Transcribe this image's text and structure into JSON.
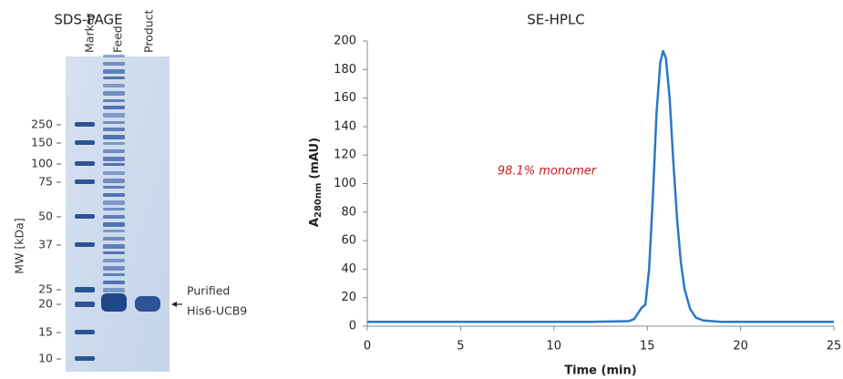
{
  "gel": {
    "title": "SDS-PAGE",
    "lanes": [
      "Marker",
      "Feed",
      "Product"
    ],
    "y_label": "MW [kDa]",
    "mw_ticks": [
      250,
      150,
      100,
      75,
      50,
      37,
      25,
      20,
      15,
      10
    ],
    "annotation": [
      "Purified",
      "His6-UCB9"
    ]
  },
  "chart_data": {
    "type": "line",
    "title": "SE-HPLC",
    "x_label": "Time (min)",
    "y_label_parts": [
      "A",
      "280nm",
      "(mAU)"
    ],
    "annotation": "98.1% monomer",
    "x": [
      0,
      2,
      4,
      6,
      8,
      10,
      12,
      14,
      14.3,
      14.5,
      14.7,
      14.9,
      15.1,
      15.3,
      15.5,
      15.7,
      15.85,
      16,
      16.2,
      16.4,
      16.6,
      16.8,
      17,
      17.3,
      17.6,
      18,
      19,
      20,
      22,
      25
    ],
    "values": [
      3,
      3,
      3,
      3,
      3,
      3,
      3,
      3.5,
      5,
      9,
      13,
      15,
      40,
      90,
      150,
      185,
      193,
      188,
      160,
      115,
      75,
      45,
      26,
      12,
      6,
      4,
      3,
      3,
      3,
      3
    ],
    "color": "#2a78c4",
    "xlim": [
      0,
      25
    ],
    "xticks": [
      0,
      5,
      10,
      15,
      20,
      25
    ],
    "ylim": [
      0,
      200
    ],
    "yticks": [
      0,
      20,
      40,
      60,
      80,
      100,
      120,
      140,
      160,
      180,
      200
    ]
  }
}
